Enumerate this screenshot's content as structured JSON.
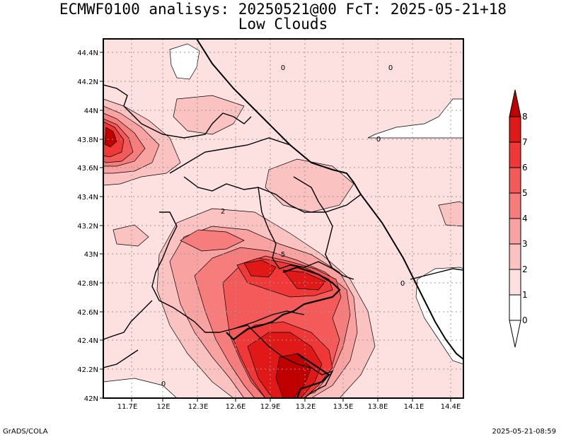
{
  "title": {
    "line1": "ECMWF0100 analisys: 20250521@00 FcT: 2025-05-21+18",
    "line2": "Low Clouds"
  },
  "footer": {
    "left": "GrADS/COLA",
    "right": "2025-05-21-08:59"
  },
  "map": {
    "lat_labels": [
      "44.4N",
      "44.2N",
      "44N",
      "43.8N",
      "43.6N",
      "43.4N",
      "43.2N",
      "43N",
      "42.8N",
      "42.6N",
      "42.4N",
      "42.2N",
      "42N"
    ],
    "lon_labels": [
      "11.7E",
      "12E",
      "12.3E",
      "12.6E",
      "12.9E",
      "13.2E",
      "13.5E",
      "13.8E",
      "14.1E",
      "14.4E"
    ],
    "contour_labels": [
      "0",
      "0",
      "0",
      "0",
      "0",
      "2",
      "5"
    ]
  },
  "colorbar": {
    "levels": [
      "8",
      "7",
      "6",
      "5",
      "4",
      "3",
      "2",
      "1",
      "0"
    ],
    "colors": [
      "#c00000",
      "#e01818",
      "#f03838",
      "#f45a5a",
      "#f77d7d",
      "#f9a2a2",
      "#fbc2c2",
      "#fde0e0",
      "#ffffff"
    ]
  }
}
